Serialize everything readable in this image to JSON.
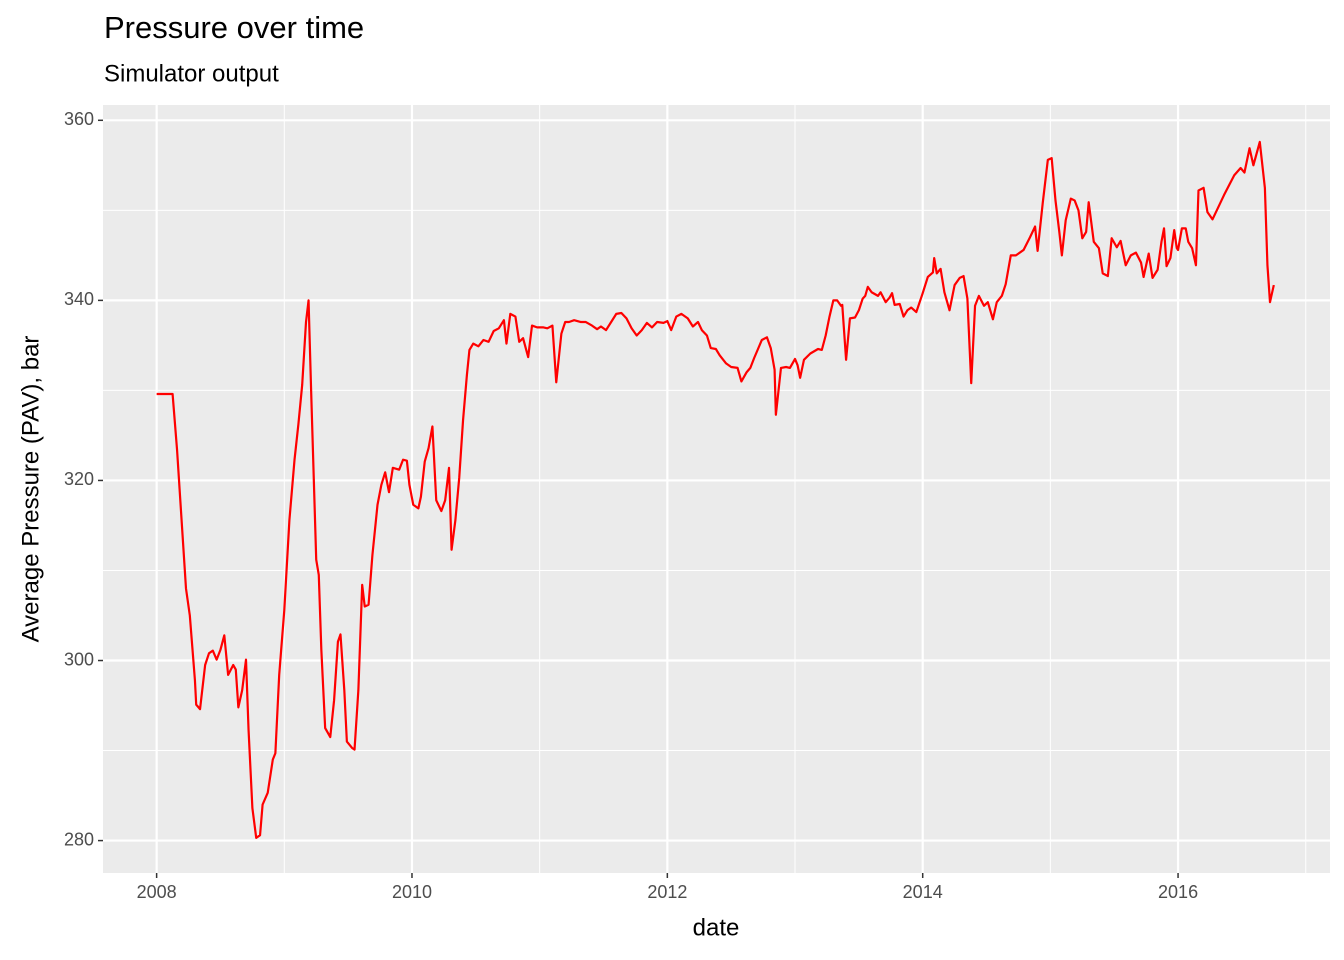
{
  "chart_data": {
    "type": "line",
    "title": "Pressure over time",
    "subtitle": "Simulator output",
    "x_label": "date",
    "y_label": "Average Pressure (PAV), bar",
    "color": "#ff0000",
    "grid": true,
    "xlim": [
      2007.58,
      2017.19
    ],
    "ylim": [
      276.4,
      361.7
    ],
    "xticks": [
      2008,
      2010,
      2012,
      2014,
      2016
    ],
    "yticks": [
      280,
      300,
      320,
      340,
      360
    ],
    "x": [
      2008.0,
      2008.125,
      2008.16,
      2008.23,
      2008.26,
      2008.3,
      2008.31,
      2008.34,
      2008.38,
      2008.41,
      2008.44,
      2008.47,
      2008.5,
      2008.53,
      2008.56,
      2008.6,
      2008.62,
      2008.64,
      2008.67,
      2008.7,
      2008.72,
      2008.75,
      2008.78,
      2008.81,
      2008.83,
      2008.87,
      2008.91,
      2008.93,
      2008.96,
      2009.0,
      2009.04,
      2009.08,
      2009.11,
      2009.14,
      2009.17,
      2009.19,
      2009.21,
      2009.25,
      2009.27,
      2009.29,
      2009.32,
      2009.36,
      2009.39,
      2009.42,
      2009.44,
      2009.47,
      2009.49,
      2009.53,
      2009.55,
      2009.58,
      2009.61,
      2009.63,
      2009.66,
      2009.69,
      2009.73,
      2009.76,
      2009.79,
      2009.82,
      2009.85,
      2009.9,
      2009.93,
      2009.96,
      2009.98,
      2010.01,
      2010.05,
      2010.07,
      2010.1,
      2010.13,
      2010.16,
      2010.19,
      2010.23,
      2010.26,
      2010.29,
      2010.31,
      2010.34,
      2010.37,
      2010.4,
      2010.43,
      2010.45,
      2010.48,
      2010.52,
      2010.56,
      2010.6,
      2010.64,
      2010.68,
      2010.72,
      2010.74,
      2010.77,
      2010.81,
      2010.84,
      2010.87,
      2010.91,
      2010.94,
      2010.98,
      2011.03,
      2011.06,
      2011.1,
      2011.13,
      2011.17,
      2011.2,
      2011.23,
      2011.27,
      2011.32,
      2011.36,
      2011.41,
      2011.45,
      2011.48,
      2011.52,
      2011.56,
      2011.6,
      2011.64,
      2011.68,
      2011.72,
      2011.76,
      2011.8,
      2011.84,
      2011.88,
      2011.92,
      2011.97,
      2012.0,
      2012.03,
      2012.07,
      2012.11,
      2012.16,
      2012.2,
      2012.24,
      2012.27,
      2012.31,
      2012.34,
      2012.38,
      2012.41,
      2012.46,
      2012.5,
      2012.55,
      2012.58,
      2012.62,
      2012.65,
      2012.68,
      2012.71,
      2012.74,
      2012.78,
      2012.81,
      2012.84,
      2012.85,
      2012.89,
      2012.93,
      2012.96,
      2013.0,
      2013.02,
      2013.04,
      2013.07,
      2013.12,
      2013.18,
      2013.21,
      2013.24,
      2013.27,
      2013.3,
      2013.33,
      2013.36,
      2013.37,
      2013.4,
      2013.43,
      2013.47,
      2013.5,
      2013.53,
      2013.55,
      2013.57,
      2013.6,
      2013.65,
      2013.67,
      2013.71,
      2013.74,
      2013.76,
      2013.78,
      2013.82,
      2013.85,
      2013.88,
      2013.91,
      2013.95,
      2014.0,
      2014.04,
      2014.08,
      2014.09,
      2014.11,
      2014.14,
      2014.17,
      2014.21,
      2014.25,
      2014.29,
      2014.32,
      2014.35,
      2014.38,
      2014.41,
      2014.44,
      2014.48,
      2014.51,
      2014.55,
      2014.58,
      2014.62,
      2014.65,
      2014.69,
      2014.73,
      2014.79,
      2014.84,
      2014.88,
      2014.9,
      2014.94,
      2014.98,
      2015.01,
      2015.04,
      2015.07,
      2015.09,
      2015.12,
      2015.16,
      2015.19,
      2015.22,
      2015.25,
      2015.28,
      2015.3,
      2015.34,
      2015.38,
      2015.41,
      2015.45,
      2015.48,
      2015.52,
      2015.55,
      2015.59,
      2015.63,
      2015.67,
      2015.71,
      2015.73,
      2015.77,
      2015.8,
      2015.84,
      2015.87,
      2015.89,
      2015.91,
      2015.94,
      2015.97,
      2015.99,
      2016.0,
      2016.03,
      2016.06,
      2016.08,
      2016.11,
      2016.14,
      2016.16,
      2016.2,
      2016.23,
      2016.27,
      2016.31,
      2016.36,
      2016.4,
      2016.44,
      2016.49,
      2016.52,
      2016.56,
      2016.59,
      2016.64,
      2016.68,
      2016.7,
      2016.72,
      2016.75
    ],
    "values": [
      329.6,
      329.6,
      323.4,
      308,
      305,
      297.8,
      295.1,
      294.6,
      299.5,
      300.8,
      301.1,
      300.1,
      301.2,
      302.8,
      298.4,
      299.5,
      299,
      294.8,
      296.7,
      300.1,
      292.3,
      283.6,
      280.3,
      280.6,
      284,
      285.3,
      289,
      289.7,
      298.4,
      305.6,
      315.6,
      322.3,
      326.2,
      330.6,
      337.6,
      340,
      330,
      311.2,
      309.5,
      301.2,
      292.5,
      291.5,
      295.6,
      302.1,
      302.9,
      296.7,
      291,
      290.3,
      290.1,
      296.7,
      308.4,
      306,
      306.2,
      311.7,
      317.3,
      319.5,
      320.9,
      318.7,
      321.4,
      321.2,
      322.3,
      322.2,
      319.5,
      317.3,
      316.9,
      318.2,
      322.1,
      323.6,
      326.0,
      317.8,
      316.6,
      317.8,
      321.4,
      312.3,
      315.6,
      320.3,
      326.7,
      331.7,
      334.5,
      335.2,
      334.9,
      335.6,
      335.4,
      336.6,
      336.9,
      337.8,
      335.2,
      338.5,
      338.2,
      335.4,
      335.8,
      333.7,
      337.2,
      337,
      337,
      336.9,
      337.2,
      330.9,
      336.3,
      337.6,
      337.6,
      337.8,
      337.6,
      337.6,
      337.2,
      336.8,
      337.1,
      336.7,
      337.6,
      338.5,
      338.6,
      338.0,
      336.9,
      336.1,
      336.7,
      337.5,
      337.0,
      337.6,
      337.5,
      337.7,
      336.7,
      338.2,
      338.5,
      338,
      337.1,
      337.6,
      336.7,
      336.1,
      334.7,
      334.6,
      333.9,
      333,
      332.6,
      332.5,
      331,
      332,
      332.5,
      333.6,
      334.6,
      335.6,
      335.9,
      334.7,
      332.3,
      327.3,
      332.5,
      332.6,
      332.5,
      333.5,
      332.8,
      331.4,
      333.4,
      334.1,
      334.6,
      334.5,
      336.1,
      338.2,
      340,
      340,
      339.4,
      339.5,
      333.4,
      338,
      338.1,
      338.9,
      340.2,
      340.5,
      341.5,
      340.9,
      340.5,
      340.9,
      339.8,
      340.3,
      340.8,
      339.5,
      339.6,
      338.2,
      338.9,
      339.2,
      338.7,
      340.8,
      342.6,
      343.1,
      344.7,
      343,
      343.5,
      340.9,
      338.9,
      341.7,
      342.5,
      342.7,
      340.2,
      330.8,
      339.4,
      340.5,
      339.4,
      339.8,
      337.9,
      339.8,
      340.5,
      341.8,
      345,
      345,
      345.6,
      347,
      348.2,
      345.5,
      350.8,
      355.6,
      355.8,
      351.1,
      347.6,
      345,
      348.9,
      351.3,
      351.1,
      350,
      346.9,
      347.6,
      350.9,
      346.5,
      345.8,
      343,
      342.7,
      346.9,
      345.9,
      346.6,
      343.9,
      345,
      345.3,
      344.2,
      342.6,
      345.2,
      342.5,
      343.4,
      346.5,
      348,
      343.8,
      344.7,
      347.8,
      345.8,
      345.6,
      348,
      348,
      346.5,
      345.8,
      343.9,
      352.2,
      352.5,
      349.8,
      349,
      350.2,
      351.7,
      352.8,
      353.9,
      354.7,
      354.2,
      356.9,
      355,
      357.6,
      352.5,
      343.9,
      339.8,
      341.7
    ]
  }
}
